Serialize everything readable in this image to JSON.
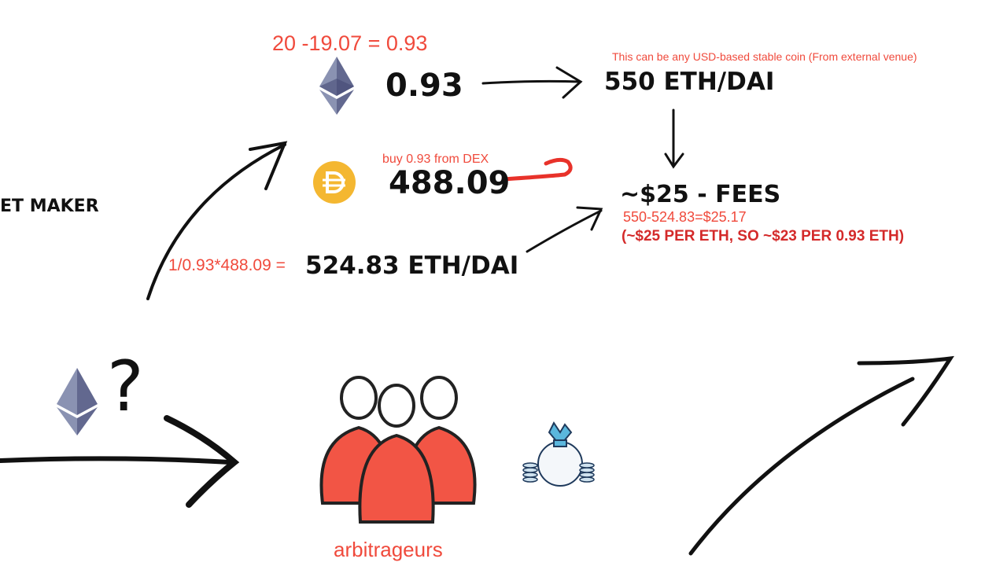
{
  "labels": {
    "eth_calc": "20 -19.07 = 0.93",
    "eth_amount": "0.93",
    "stable_note": "This can be any USD-based stable coin (From external venue)",
    "external_price": "550 ETH/DAI",
    "dex_note": "buy 0.93 from DEX",
    "dai_amount": "488.09",
    "fees": "~$25 - FEES",
    "fee_calc": "550-524.83=$25.17",
    "fee_note": "(~$25 PER ETH, SO ~$23 PER 0.93 ETH)",
    "market_maker_fragment": "ET MAKER",
    "price_calc": "1/0.93*488.09 =",
    "dex_price": "524.83 ETH/DAI",
    "question_mark": "?",
    "arbitrageurs": "arbitrageurs"
  },
  "icons": {
    "eth_top": "ethereum-icon",
    "dai": "dai-coin-icon",
    "eth_bottom": "ethereum-icon",
    "people": "arbitrageurs-group-icon",
    "money_bag": "money-bag-icon"
  },
  "colors": {
    "red_annotation": "#f04a3c",
    "dark_red_annotation": "#d42a2a",
    "ink": "#111111",
    "dai_gold": "#f4b731",
    "eth_gray": "#8a92b2",
    "people_red": "#f25545"
  }
}
